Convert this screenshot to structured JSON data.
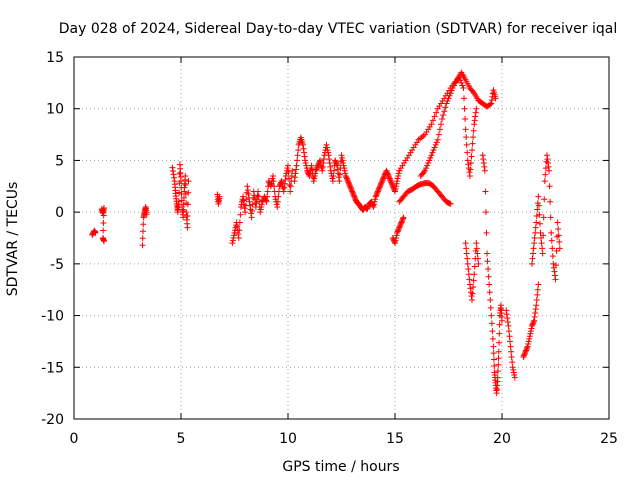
{
  "colors": {
    "series": "#ff0000",
    "grid": "#a0a0a0",
    "frame": "#000000"
  },
  "chart_data": {
    "type": "scatter",
    "title": "Day 028 of 2024, Sidereal Day-to-day VTEC variation (SDTVAR) for receiver iqal",
    "xlabel": "GPS time / hours",
    "ylabel": "SDTVAR / TECUs",
    "xlim": [
      0,
      25
    ],
    "ylim": [
      -20,
      15
    ],
    "xticks": [
      0,
      5,
      10,
      15,
      20,
      25
    ],
    "yticks": [
      -20,
      -15,
      -10,
      -5,
      0,
      5,
      10,
      15
    ],
    "grid": true,
    "marker": "plus",
    "series": [
      {
        "name": "SDTVAR",
        "segments": [
          [
            [
              0.85,
              -2.2
            ],
            [
              0.95,
              -1.8
            ],
            [
              1.0,
              -2.0
            ]
          ],
          [
            [
              1.3,
              0.3
            ],
            [
              1.35,
              -0.1
            ],
            [
              1.4,
              0.4
            ],
            [
              1.35,
              -2.5
            ],
            [
              1.4,
              -2.8
            ]
          ],
          [
            [
              3.2,
              -3.2
            ],
            [
              3.25,
              -0.5
            ],
            [
              3.3,
              0.0
            ],
            [
              3.35,
              0.5
            ],
            [
              3.4,
              -0.2
            ]
          ],
          [
            [
              4.6,
              4.3
            ],
            [
              4.7,
              3.0
            ],
            [
              4.75,
              1.8
            ],
            [
              4.8,
              0.8
            ],
            [
              4.85,
              0.0
            ],
            [
              4.9,
              1.0
            ],
            [
              4.95,
              4.6
            ],
            [
              5.0,
              3.0
            ],
            [
              5.05,
              0.5
            ],
            [
              5.1,
              -0.5
            ],
            [
              5.15,
              2.0
            ],
            [
              5.2,
              3.5
            ],
            [
              5.25,
              0.0
            ],
            [
              5.3,
              -1.5
            ],
            [
              5.35,
              3.0
            ]
          ],
          [
            [
              6.7,
              1.7
            ],
            [
              6.75,
              0.8
            ],
            [
              6.8,
              1.5
            ]
          ],
          [
            [
              7.4,
              -3.0
            ],
            [
              7.5,
              -2.0
            ],
            [
              7.6,
              -1.0
            ],
            [
              7.7,
              -2.5
            ],
            [
              7.8,
              0.5
            ],
            [
              7.9,
              1.5
            ],
            [
              8.0,
              0.0
            ],
            [
              8.1,
              2.5
            ],
            [
              8.2,
              1.0
            ],
            [
              8.3,
              -0.5
            ],
            [
              8.4,
              2.0
            ],
            [
              8.5,
              0.5
            ],
            [
              8.6,
              2.0
            ],
            [
              8.7,
              0.0
            ],
            [
              8.8,
              1.0
            ],
            [
              8.9,
              1.5
            ],
            [
              9.0,
              1.0
            ],
            [
              9.1,
              3.0
            ],
            [
              9.2,
              2.5
            ],
            [
              9.3,
              3.5
            ],
            [
              9.4,
              1.5
            ],
            [
              9.5,
              0.5
            ],
            [
              9.6,
              2.5
            ],
            [
              9.7,
              3.0
            ],
            [
              9.8,
              2.0
            ],
            [
              9.9,
              3.5
            ],
            [
              10.0,
              4.5
            ],
            [
              10.1,
              2.0
            ],
            [
              10.2,
              4.0
            ]
          ],
          [
            [
              10.3,
              3.0
            ],
            [
              10.4,
              4.5
            ],
            [
              10.5,
              6.5
            ],
            [
              10.6,
              7.2
            ],
            [
              10.7,
              6.5
            ],
            [
              10.8,
              5.0
            ],
            [
              10.9,
              4.0
            ],
            [
              11.0,
              3.5
            ],
            [
              11.1,
              4.5
            ],
            [
              11.2,
              3.0
            ],
            [
              11.3,
              4.0
            ],
            [
              11.4,
              4.5
            ],
            [
              11.5,
              5.0
            ],
            [
              11.6,
              4.0
            ],
            [
              11.7,
              5.5
            ],
            [
              11.8,
              6.5
            ],
            [
              11.9,
              5.5
            ],
            [
              12.0,
              4.0
            ],
            [
              12.1,
              3.0
            ],
            [
              12.2,
              5.0
            ],
            [
              12.3,
              4.5
            ],
            [
              12.4,
              3.0
            ],
            [
              12.5,
              5.5
            ],
            [
              12.6,
              4.5
            ],
            [
              12.7,
              3.5
            ],
            [
              12.8,
              3.0
            ],
            [
              12.9,
              2.5
            ],
            [
              13.0,
              2.0
            ],
            [
              13.1,
              1.5
            ],
            [
              13.2,
              1.0
            ],
            [
              13.3,
              0.8
            ],
            [
              13.4,
              0.5
            ],
            [
              13.5,
              0.2
            ],
            [
              13.6,
              0.5
            ],
            [
              13.7,
              0.3
            ],
            [
              13.8,
              0.8
            ],
            [
              13.9,
              1.0
            ],
            [
              14.0,
              0.5
            ],
            [
              14.1,
              1.5
            ],
            [
              14.2,
              2.0
            ],
            [
              14.3,
              2.5
            ],
            [
              14.4,
              3.0
            ],
            [
              14.5,
              3.5
            ],
            [
              14.6,
              4.0
            ],
            [
              14.7,
              3.5
            ],
            [
              14.8,
              3.0
            ],
            [
              14.9,
              2.5
            ],
            [
              15.0,
              2.0
            ],
            [
              15.1,
              3.0
            ],
            [
              15.2,
              4.0
            ]
          ],
          [
            [
              14.9,
              -2.5
            ],
            [
              15.0,
              -3.0
            ],
            [
              15.1,
              -2.0
            ],
            [
              15.2,
              -1.5
            ],
            [
              15.3,
              -1.0
            ],
            [
              15.4,
              -0.5
            ]
          ],
          [
            [
              15.2,
              1.0
            ],
            [
              15.4,
              1.5
            ],
            [
              15.6,
              2.0
            ],
            [
              15.8,
              2.2
            ],
            [
              16.0,
              2.5
            ],
            [
              16.2,
              2.7
            ],
            [
              16.4,
              2.8
            ],
            [
              16.6,
              2.8
            ],
            [
              16.8,
              2.5
            ],
            [
              17.0,
              2.0
            ],
            [
              17.2,
              1.5
            ],
            [
              17.4,
              1.0
            ],
            [
              17.6,
              0.8
            ]
          ],
          [
            [
              15.2,
              4.0
            ],
            [
              15.5,
              5.0
            ],
            [
              15.8,
              6.0
            ],
            [
              16.1,
              7.0
            ],
            [
              16.4,
              7.5
            ],
            [
              16.7,
              8.5
            ],
            [
              17.0,
              10.0
            ],
            [
              17.3,
              11.0
            ],
            [
              17.6,
              12.0
            ],
            [
              17.9,
              12.8
            ],
            [
              18.1,
              13.5
            ],
            [
              18.3,
              12.8
            ],
            [
              18.5,
              12.0
            ],
            [
              18.7,
              11.5
            ],
            [
              18.9,
              10.8
            ],
            [
              19.1,
              10.5
            ],
            [
              19.3,
              10.2
            ],
            [
              19.5,
              10.5
            ],
            [
              19.6,
              11.8
            ],
            [
              19.7,
              11.0
            ]
          ],
          [
            [
              16.2,
              3.5
            ],
            [
              16.4,
              4.0
            ],
            [
              16.6,
              5.0
            ],
            [
              16.8,
              6.0
            ],
            [
              17.0,
              7.0
            ],
            [
              17.2,
              9.0
            ],
            [
              17.4,
              10.5
            ],
            [
              17.6,
              11.5
            ],
            [
              17.8,
              12.5
            ],
            [
              18.0,
              13.0
            ],
            [
              18.2,
              12.0
            ],
            [
              18.3,
              8.0
            ],
            [
              18.4,
              5.0
            ],
            [
              18.5,
              3.5
            ],
            [
              18.6,
              6.0
            ],
            [
              18.7,
              8.5
            ],
            [
              18.8,
              10.0
            ]
          ],
          [
            [
              18.3,
              -3.0
            ],
            [
              18.4,
              -5.0
            ],
            [
              18.5,
              -7.0
            ],
            [
              18.6,
              -8.5
            ],
            [
              18.7,
              -6.0
            ],
            [
              18.8,
              -3.0
            ],
            [
              18.9,
              -5.0
            ]
          ],
          [
            [
              19.1,
              5.5
            ],
            [
              19.2,
              4.0
            ],
            [
              19.3,
              -4.0
            ],
            [
              19.4,
              -7.0
            ],
            [
              19.5,
              -10.0
            ],
            [
              19.6,
              -13.0
            ],
            [
              19.65,
              -15.5
            ],
            [
              19.7,
              -16.5
            ],
            [
              19.75,
              -17.5
            ],
            [
              19.8,
              -16.0
            ],
            [
              19.85,
              -13.5
            ],
            [
              19.9,
              -10.0
            ],
            [
              19.95,
              -9.0
            ],
            [
              20.0,
              -10.5
            ]
          ],
          [
            [
              20.2,
              -9.5
            ],
            [
              20.3,
              -11.0
            ],
            [
              20.4,
              -13.0
            ],
            [
              20.5,
              -15.0
            ],
            [
              20.6,
              -16.0
            ]
          ],
          [
            [
              21.0,
              -14.0
            ],
            [
              21.1,
              -13.5
            ],
            [
              21.2,
              -13.0
            ],
            [
              21.3,
              -12.0
            ],
            [
              21.4,
              -11.0
            ],
            [
              21.5,
              -10.5
            ],
            [
              21.6,
              -9.0
            ],
            [
              21.7,
              -7.0
            ]
          ],
          [
            [
              21.4,
              -5.0
            ],
            [
              21.5,
              -3.0
            ],
            [
              21.6,
              -1.0
            ],
            [
              21.7,
              1.5
            ],
            [
              21.8,
              -2.0
            ],
            [
              21.9,
              -4.0
            ],
            [
              22.0,
              3.0
            ],
            [
              22.1,
              5.5
            ],
            [
              22.2,
              4.0
            ],
            [
              22.3,
              -2.0
            ],
            [
              22.4,
              -5.0
            ],
            [
              22.5,
              -6.5
            ],
            [
              22.6,
              -1.0
            ],
            [
              22.7,
              -3.5
            ]
          ]
        ]
      }
    ]
  }
}
